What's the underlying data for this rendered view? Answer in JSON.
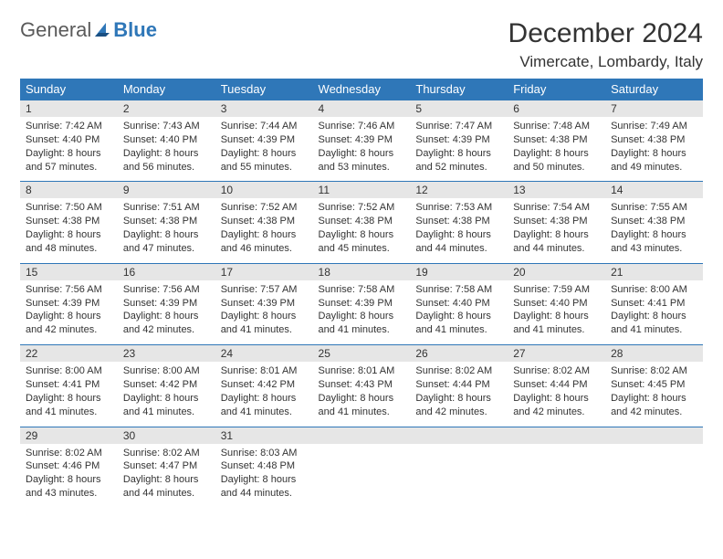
{
  "brand": {
    "part1": "General",
    "part2": "Blue"
  },
  "title": "December 2024",
  "location": "Vimercate, Lombardy, Italy",
  "colors": {
    "header_bg": "#2f77b8",
    "header_text": "#ffffff",
    "daynum_bg": "#e6e6e6",
    "text": "#333333",
    "rule": "#2f77b8"
  },
  "weekdays": [
    "Sunday",
    "Monday",
    "Tuesday",
    "Wednesday",
    "Thursday",
    "Friday",
    "Saturday"
  ],
  "weeks": [
    [
      {
        "n": "1",
        "sr": "Sunrise: 7:42 AM",
        "ss": "Sunset: 4:40 PM",
        "dl": "Daylight: 8 hours and 57 minutes."
      },
      {
        "n": "2",
        "sr": "Sunrise: 7:43 AM",
        "ss": "Sunset: 4:40 PM",
        "dl": "Daylight: 8 hours and 56 minutes."
      },
      {
        "n": "3",
        "sr": "Sunrise: 7:44 AM",
        "ss": "Sunset: 4:39 PM",
        "dl": "Daylight: 8 hours and 55 minutes."
      },
      {
        "n": "4",
        "sr": "Sunrise: 7:46 AM",
        "ss": "Sunset: 4:39 PM",
        "dl": "Daylight: 8 hours and 53 minutes."
      },
      {
        "n": "5",
        "sr": "Sunrise: 7:47 AM",
        "ss": "Sunset: 4:39 PM",
        "dl": "Daylight: 8 hours and 52 minutes."
      },
      {
        "n": "6",
        "sr": "Sunrise: 7:48 AM",
        "ss": "Sunset: 4:38 PM",
        "dl": "Daylight: 8 hours and 50 minutes."
      },
      {
        "n": "7",
        "sr": "Sunrise: 7:49 AM",
        "ss": "Sunset: 4:38 PM",
        "dl": "Daylight: 8 hours and 49 minutes."
      }
    ],
    [
      {
        "n": "8",
        "sr": "Sunrise: 7:50 AM",
        "ss": "Sunset: 4:38 PM",
        "dl": "Daylight: 8 hours and 48 minutes."
      },
      {
        "n": "9",
        "sr": "Sunrise: 7:51 AM",
        "ss": "Sunset: 4:38 PM",
        "dl": "Daylight: 8 hours and 47 minutes."
      },
      {
        "n": "10",
        "sr": "Sunrise: 7:52 AM",
        "ss": "Sunset: 4:38 PM",
        "dl": "Daylight: 8 hours and 46 minutes."
      },
      {
        "n": "11",
        "sr": "Sunrise: 7:52 AM",
        "ss": "Sunset: 4:38 PM",
        "dl": "Daylight: 8 hours and 45 minutes."
      },
      {
        "n": "12",
        "sr": "Sunrise: 7:53 AM",
        "ss": "Sunset: 4:38 PM",
        "dl": "Daylight: 8 hours and 44 minutes."
      },
      {
        "n": "13",
        "sr": "Sunrise: 7:54 AM",
        "ss": "Sunset: 4:38 PM",
        "dl": "Daylight: 8 hours and 44 minutes."
      },
      {
        "n": "14",
        "sr": "Sunrise: 7:55 AM",
        "ss": "Sunset: 4:38 PM",
        "dl": "Daylight: 8 hours and 43 minutes."
      }
    ],
    [
      {
        "n": "15",
        "sr": "Sunrise: 7:56 AM",
        "ss": "Sunset: 4:39 PM",
        "dl": "Daylight: 8 hours and 42 minutes."
      },
      {
        "n": "16",
        "sr": "Sunrise: 7:56 AM",
        "ss": "Sunset: 4:39 PM",
        "dl": "Daylight: 8 hours and 42 minutes."
      },
      {
        "n": "17",
        "sr": "Sunrise: 7:57 AM",
        "ss": "Sunset: 4:39 PM",
        "dl": "Daylight: 8 hours and 41 minutes."
      },
      {
        "n": "18",
        "sr": "Sunrise: 7:58 AM",
        "ss": "Sunset: 4:39 PM",
        "dl": "Daylight: 8 hours and 41 minutes."
      },
      {
        "n": "19",
        "sr": "Sunrise: 7:58 AM",
        "ss": "Sunset: 4:40 PM",
        "dl": "Daylight: 8 hours and 41 minutes."
      },
      {
        "n": "20",
        "sr": "Sunrise: 7:59 AM",
        "ss": "Sunset: 4:40 PM",
        "dl": "Daylight: 8 hours and 41 minutes."
      },
      {
        "n": "21",
        "sr": "Sunrise: 8:00 AM",
        "ss": "Sunset: 4:41 PM",
        "dl": "Daylight: 8 hours and 41 minutes."
      }
    ],
    [
      {
        "n": "22",
        "sr": "Sunrise: 8:00 AM",
        "ss": "Sunset: 4:41 PM",
        "dl": "Daylight: 8 hours and 41 minutes."
      },
      {
        "n": "23",
        "sr": "Sunrise: 8:00 AM",
        "ss": "Sunset: 4:42 PM",
        "dl": "Daylight: 8 hours and 41 minutes."
      },
      {
        "n": "24",
        "sr": "Sunrise: 8:01 AM",
        "ss": "Sunset: 4:42 PM",
        "dl": "Daylight: 8 hours and 41 minutes."
      },
      {
        "n": "25",
        "sr": "Sunrise: 8:01 AM",
        "ss": "Sunset: 4:43 PM",
        "dl": "Daylight: 8 hours and 41 minutes."
      },
      {
        "n": "26",
        "sr": "Sunrise: 8:02 AM",
        "ss": "Sunset: 4:44 PM",
        "dl": "Daylight: 8 hours and 42 minutes."
      },
      {
        "n": "27",
        "sr": "Sunrise: 8:02 AM",
        "ss": "Sunset: 4:44 PM",
        "dl": "Daylight: 8 hours and 42 minutes."
      },
      {
        "n": "28",
        "sr": "Sunrise: 8:02 AM",
        "ss": "Sunset: 4:45 PM",
        "dl": "Daylight: 8 hours and 42 minutes."
      }
    ],
    [
      {
        "n": "29",
        "sr": "Sunrise: 8:02 AM",
        "ss": "Sunset: 4:46 PM",
        "dl": "Daylight: 8 hours and 43 minutes."
      },
      {
        "n": "30",
        "sr": "Sunrise: 8:02 AM",
        "ss": "Sunset: 4:47 PM",
        "dl": "Daylight: 8 hours and 44 minutes."
      },
      {
        "n": "31",
        "sr": "Sunrise: 8:03 AM",
        "ss": "Sunset: 4:48 PM",
        "dl": "Daylight: 8 hours and 44 minutes."
      },
      null,
      null,
      null,
      null
    ]
  ]
}
